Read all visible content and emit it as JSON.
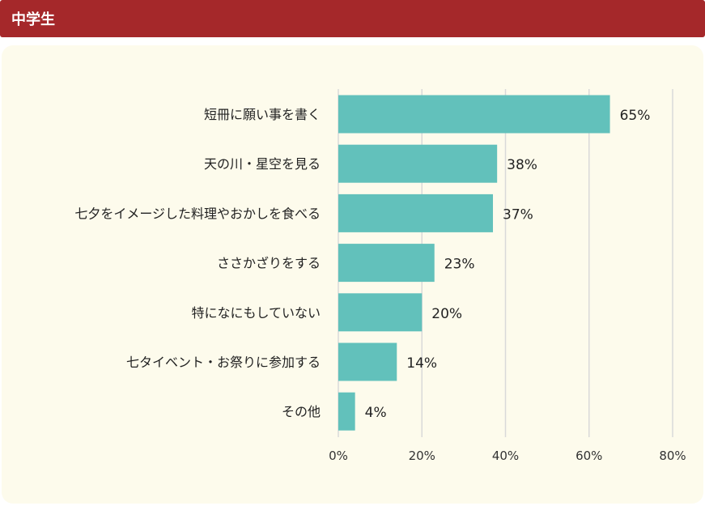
{
  "header": {
    "title": "中学生"
  },
  "chart_data": {
    "type": "bar",
    "orientation": "horizontal",
    "categories": [
      "短冊に願い事を書く",
      "天の川・星空を見る",
      "七夕をイメージした料理やおかしを食べる",
      "ささかざりをする",
      "特になにもしていない",
      "七タイベント・お祭りに参加する",
      "その他"
    ],
    "values": [
      65,
      38,
      37,
      23,
      20,
      14,
      4
    ],
    "value_labels": [
      "65%",
      "38%",
      "37%",
      "23%",
      "20%",
      "14%",
      "4%"
    ],
    "xlim": [
      0,
      80
    ],
    "xticks": [
      0,
      20,
      40,
      60,
      80
    ],
    "xtick_labels": [
      "0%",
      "20%",
      "40%",
      "60%",
      "80%"
    ],
    "grid": true,
    "colors": {
      "bar": "#62c1bb",
      "grid": "#d9d9d9",
      "header": "#a5282a",
      "panel": "#fdfbec"
    }
  }
}
